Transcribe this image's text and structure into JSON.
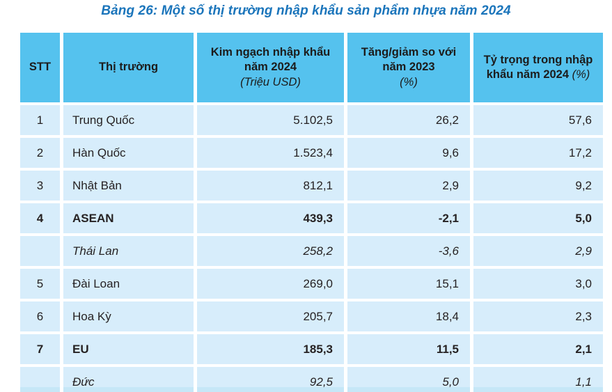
{
  "page": {
    "title": "Bảng 26: Một số thị trường nhập khẩu sản phẩm nhựa năm 2024"
  },
  "colors": {
    "header_bg": "#55c2ee",
    "row_bg": "#d7edfb",
    "title_text": "#1b75bb",
    "strip_bg": "#c6e7f7"
  },
  "table": {
    "columns": [
      {
        "label": "STT",
        "sub": "",
        "sub_inline": false
      },
      {
        "label": "Thị trường",
        "sub": "",
        "sub_inline": false
      },
      {
        "label": "Kim ngạch nhập khẩu năm 2024",
        "sub": "(Triệu USD)",
        "sub_inline": false
      },
      {
        "label": "Tăng/giảm so với năm 2023",
        "sub": "(%)",
        "sub_inline": false
      },
      {
        "label": "Tỷ trọng trong nhập khẩu năm 2024",
        "sub": "(%)",
        "sub_inline": true
      }
    ],
    "rows": [
      {
        "stt": "1",
        "market": "Trung Quốc",
        "value": "5.102,5",
        "growth": "26,2",
        "share": "57,6",
        "emphasis": "normal"
      },
      {
        "stt": "2",
        "market": "Hàn Quốc",
        "value": "1.523,4",
        "growth": "9,6",
        "share": "17,2",
        "emphasis": "normal"
      },
      {
        "stt": "3",
        "market": "Nhật Bản",
        "value": "812,1",
        "growth": "2,9",
        "share": "9,2",
        "emphasis": "normal"
      },
      {
        "stt": "4",
        "market": "ASEAN",
        "value": "439,3",
        "growth": "-2,1",
        "share": "5,0",
        "emphasis": "bold"
      },
      {
        "stt": "",
        "market": "Thái Lan",
        "value": "258,2",
        "growth": "-3,6",
        "share": "2,9",
        "emphasis": "italic"
      },
      {
        "stt": "5",
        "market": "Đài Loan",
        "value": "269,0",
        "growth": "15,1",
        "share": "3,0",
        "emphasis": "normal"
      },
      {
        "stt": "6",
        "market": "Hoa Kỳ",
        "value": "205,7",
        "growth": "18,4",
        "share": "2,3",
        "emphasis": "normal"
      },
      {
        "stt": "7",
        "market": "EU",
        "value": "185,3",
        "growth": "11,5",
        "share": "2,1",
        "emphasis": "bold"
      },
      {
        "stt": "",
        "market": "Đức",
        "value": "92,5",
        "growth": "5,0",
        "share": "1,1",
        "emphasis": "italic"
      }
    ]
  }
}
